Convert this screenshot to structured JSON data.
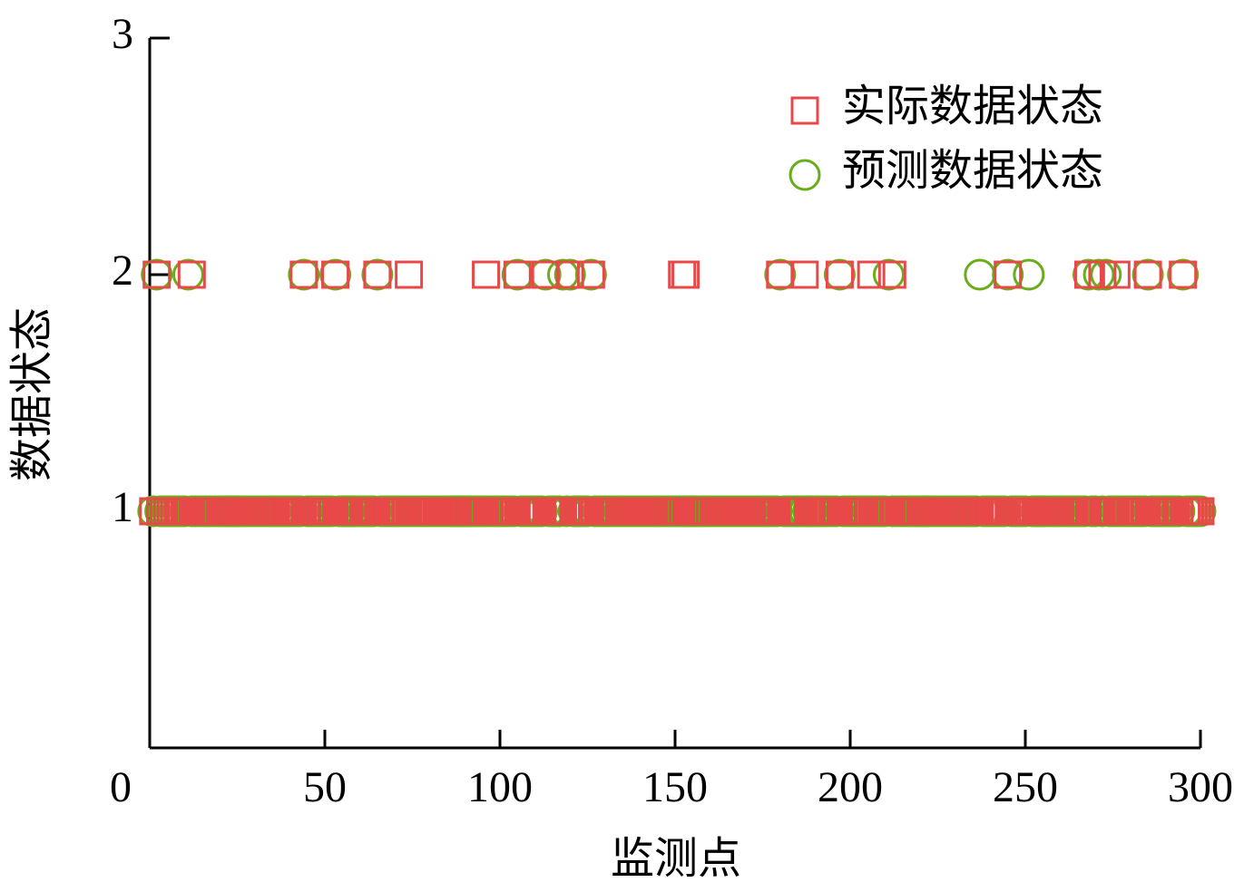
{
  "chart_data": {
    "type": "scatter",
    "x_label": "监测点",
    "y_label": "数据状态",
    "xlim": [
      0,
      300
    ],
    "xticks": [
      0,
      50,
      100,
      150,
      200,
      250,
      300
    ],
    "ylim": [
      0,
      3
    ],
    "yticks": [
      1,
      2,
      3
    ],
    "legend": "upper right",
    "x": [
      1,
      2,
      3,
      4,
      5,
      6,
      7,
      8,
      9,
      10,
      11,
      12,
      13,
      14,
      15,
      16,
      17,
      18,
      19,
      20,
      21,
      22,
      23,
      24,
      25,
      26,
      27,
      28,
      29,
      30,
      31,
      32,
      33,
      34,
      35,
      36,
      37,
      38,
      39,
      40,
      41,
      42,
      43,
      44,
      45,
      46,
      47,
      48,
      49,
      50,
      51,
      52,
      53,
      54,
      55,
      56,
      57,
      58,
      59,
      60,
      61,
      62,
      63,
      64,
      65,
      66,
      67,
      68,
      69,
      70,
      71,
      72,
      73,
      74,
      75,
      76,
      77,
      78,
      79,
      80,
      81,
      82,
      83,
      84,
      85,
      86,
      87,
      88,
      89,
      90,
      91,
      92,
      93,
      94,
      95,
      96,
      97,
      98,
      99,
      100,
      101,
      102,
      103,
      104,
      105,
      106,
      107,
      108,
      109,
      110,
      111,
      112,
      113,
      114,
      115,
      116,
      117,
      118,
      119,
      120,
      121,
      122,
      123,
      124,
      125,
      126,
      127,
      128,
      129,
      130,
      131,
      132,
      133,
      134,
      135,
      136,
      137,
      138,
      139,
      140,
      141,
      142,
      143,
      144,
      145,
      146,
      147,
      148,
      149,
      150,
      151,
      152,
      153,
      154,
      155,
      156,
      157,
      158,
      159,
      160,
      161,
      162,
      163,
      164,
      165,
      166,
      167,
      168,
      169,
      170,
      171,
      172,
      173,
      174,
      175,
      176,
      177,
      178,
      179,
      180,
      181,
      182,
      183,
      184,
      185,
      186,
      187,
      188,
      189,
      190,
      191,
      192,
      193,
      194,
      195,
      196,
      197,
      198,
      199,
      200,
      201,
      202,
      203,
      204,
      205,
      206,
      207,
      208,
      209,
      210,
      211,
      212,
      213,
      214,
      215,
      216,
      217,
      218,
      219,
      220,
      221,
      222,
      223,
      224,
      225,
      226,
      227,
      228,
      229,
      230,
      231,
      232,
      233,
      234,
      235,
      236,
      237,
      238,
      239,
      240,
      241,
      242,
      243,
      244,
      245,
      246,
      247,
      248,
      249,
      250,
      251,
      252,
      253,
      254,
      255,
      256,
      257,
      258,
      259,
      260,
      261,
      262,
      263,
      264,
      265,
      266,
      267,
      268,
      269,
      270,
      271,
      272,
      273,
      274,
      275,
      276,
      277,
      278,
      279,
      280,
      281,
      282,
      283,
      284,
      285,
      286,
      287,
      288,
      289,
      290,
      291,
      292,
      293,
      294,
      295,
      296,
      297,
      298,
      299,
      300
    ],
    "series": [
      {
        "name": "实际数据状态",
        "marker": "square",
        "color": "#e84848",
        "values": [
          1,
          2,
          1,
          1,
          1,
          1,
          1,
          1,
          1,
          1,
          1,
          2,
          1,
          1,
          1,
          1,
          1,
          1,
          1,
          1,
          1,
          1,
          1,
          1,
          1,
          1,
          1,
          1,
          1,
          1,
          1,
          1,
          1,
          1,
          1,
          1,
          1,
          1,
          1,
          1,
          1,
          1,
          1,
          2,
          1,
          1,
          1,
          1,
          1,
          1,
          1,
          1,
          2,
          1,
          1,
          1,
          1,
          1,
          1,
          1,
          1,
          1,
          1,
          1,
          2,
          1,
          1,
          1,
          1,
          1,
          1,
          1,
          1,
          2,
          1,
          1,
          1,
          1,
          1,
          1,
          1,
          1,
          1,
          1,
          1,
          1,
          1,
          1,
          1,
          1,
          1,
          1,
          1,
          1,
          1,
          2,
          1,
          1,
          1,
          1,
          1,
          1,
          1,
          1,
          2,
          1,
          1,
          1,
          1,
          1,
          1,
          1,
          2,
          1,
          1,
          1,
          1,
          1,
          1,
          2,
          1,
          1,
          1,
          1,
          1,
          2,
          1,
          1,
          1,
          1,
          1,
          1,
          1,
          1,
          1,
          1,
          1,
          1,
          1,
          1,
          1,
          1,
          1,
          1,
          1,
          1,
          1,
          1,
          1,
          1,
          1,
          2,
          2,
          1,
          1,
          1,
          1,
          1,
          1,
          1,
          1,
          1,
          1,
          1,
          1,
          1,
          1,
          1,
          1,
          1,
          1,
          1,
          1,
          1,
          1,
          1,
          1,
          1,
          1,
          2,
          1,
          1,
          1,
          1,
          1,
          1,
          2,
          1,
          1,
          1,
          1,
          1,
          1,
          1,
          1,
          1,
          2,
          1,
          1,
          1,
          1,
          1,
          1,
          1,
          1,
          2,
          1,
          1,
          1,
          1,
          1,
          2,
          1,
          1,
          1,
          1,
          1,
          1,
          1,
          1,
          1,
          1,
          1,
          1,
          1,
          1,
          1,
          1,
          1,
          1,
          1,
          1,
          1,
          1,
          1,
          1,
          1,
          1,
          1,
          1,
          1,
          1,
          1,
          1,
          2,
          1,
          1,
          1,
          1,
          1,
          1,
          1,
          1,
          1,
          1,
          1,
          1,
          1,
          1,
          1,
          1,
          1,
          1,
          1,
          1,
          1,
          1,
          2,
          1,
          1,
          1,
          2,
          1,
          1,
          1,
          2,
          1,
          1,
          1,
          1,
          1,
          1,
          1,
          1,
          2,
          1,
          1,
          1,
          1,
          1,
          1,
          1,
          1,
          1,
          2,
          1,
          1,
          1,
          1,
          1
        ]
      },
      {
        "name": "预测数据状态",
        "marker": "circle",
        "color": "#6aad1c",
        "values": [
          1,
          2,
          1,
          1,
          1,
          1,
          1,
          1,
          1,
          1,
          2,
          1,
          1,
          1,
          1,
          1,
          1,
          1,
          1,
          1,
          1,
          1,
          1,
          1,
          1,
          1,
          1,
          1,
          1,
          1,
          1,
          1,
          1,
          1,
          1,
          1,
          1,
          1,
          1,
          1,
          1,
          1,
          1,
          2,
          1,
          1,
          1,
          1,
          1,
          1,
          1,
          1,
          2,
          1,
          1,
          1,
          1,
          1,
          1,
          1,
          1,
          1,
          1,
          1,
          2,
          1,
          1,
          1,
          1,
          1,
          1,
          1,
          1,
          1,
          1,
          1,
          1,
          1,
          1,
          1,
          1,
          1,
          1,
          1,
          1,
          1,
          1,
          1,
          1,
          1,
          1,
          1,
          1,
          1,
          1,
          1,
          1,
          1,
          1,
          1,
          1,
          1,
          1,
          1,
          2,
          1,
          1,
          1,
          1,
          1,
          1,
          1,
          2,
          1,
          1,
          1,
          1,
          2,
          1,
          2,
          1,
          1,
          1,
          1,
          1,
          2,
          1,
          1,
          1,
          1,
          1,
          1,
          1,
          1,
          1,
          1,
          1,
          1,
          1,
          1,
          1,
          1,
          1,
          1,
          1,
          1,
          1,
          1,
          1,
          1,
          1,
          1,
          1,
          1,
          1,
          1,
          1,
          1,
          1,
          1,
          1,
          1,
          1,
          1,
          1,
          1,
          1,
          1,
          1,
          1,
          1,
          1,
          1,
          1,
          1,
          1,
          1,
          1,
          1,
          2,
          1,
          1,
          1,
          1,
          1,
          1,
          1,
          1,
          1,
          1,
          1,
          1,
          1,
          1,
          1,
          1,
          2,
          1,
          1,
          1,
          1,
          1,
          1,
          1,
          1,
          1,
          1,
          1,
          1,
          1,
          2,
          1,
          1,
          1,
          1,
          1,
          1,
          1,
          1,
          1,
          1,
          1,
          1,
          1,
          1,
          1,
          1,
          1,
          1,
          1,
          1,
          1,
          1,
          1,
          1,
          1,
          2,
          1,
          1,
          1,
          1,
          1,
          1,
          1,
          2,
          1,
          1,
          1,
          1,
          1,
          2,
          1,
          1,
          1,
          1,
          1,
          1,
          1,
          1,
          1,
          1,
          1,
          1,
          1,
          1,
          1,
          1,
          2,
          1,
          1,
          2,
          1,
          2,
          1,
          1,
          1,
          1,
          1,
          1,
          1,
          1,
          1,
          1,
          1,
          2,
          1,
          1,
          1,
          1,
          1,
          1,
          1,
          1,
          1,
          2,
          1,
          1,
          1,
          1,
          1
        ]
      }
    ]
  }
}
